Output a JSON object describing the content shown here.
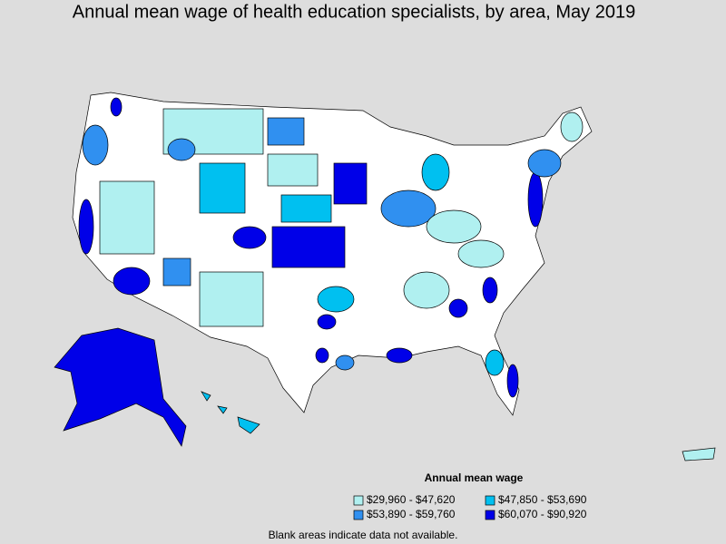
{
  "title": "Annual mean wage of health education specialists, by area, May 2019",
  "legend": {
    "title": "Annual mean wage",
    "items": [
      {
        "label": "$29,960 - $47,620",
        "color": "#b0f0f0"
      },
      {
        "label": "$47,850 - $53,690",
        "color": "#00c0f0"
      },
      {
        "label": "$53,890 - $59,760",
        "color": "#3090f0"
      },
      {
        "label": "$60,070 - $90,920",
        "color": "#0000e8"
      }
    ]
  },
  "footnote": "Blank areas indicate data not available."
}
